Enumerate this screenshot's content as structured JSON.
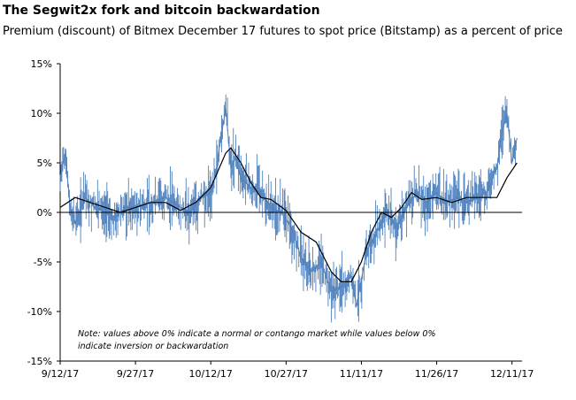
{
  "title": "The Segwit2x fork and bitcoin backwardation",
  "subtitle": "Premium (discount) of Bitmex December 17 futures to spot price (Bitstamp) as a percent of price",
  "chart_data": {
    "type": "line",
    "title": "The Segwit2x fork and bitcoin backwardation",
    "subtitle": "Premium (discount) of Bitmex December 17 futures to spot price (Bitstamp) as a percent of price",
    "xlabel": "",
    "ylabel": "",
    "x_ticks": [
      "9/12/17",
      "9/27/17",
      "10/12/17",
      "10/27/17",
      "11/11/17",
      "11/26/17",
      "12/11/17"
    ],
    "y_ticks": [
      "15%",
      "10%",
      "5%",
      "0%",
      "-5%",
      "-10%",
      "-15%"
    ],
    "xlim": [
      "2017-09-12",
      "2017-12-13"
    ],
    "ylim": [
      -15,
      15
    ],
    "grid": false,
    "zero_line": true,
    "note_lines": [
      "Note: values above 0% indicate a normal or contango market while values below 0%",
      "indicate inversion or backwardation"
    ],
    "series": [
      {
        "kind": "raw",
        "color": "#4f81bd",
        "x": [
          "2017-09-12",
          "2017-09-13",
          "2017-09-14",
          "2017-09-15",
          "2017-09-17",
          "2017-09-19",
          "2017-09-21",
          "2017-09-23",
          "2017-09-25",
          "2017-09-27",
          "2017-09-30",
          "2017-10-03",
          "2017-10-06",
          "2017-10-08",
          "2017-10-10",
          "2017-10-12",
          "2017-10-13",
          "2017-10-14",
          "2017-10-15",
          "2017-10-16",
          "2017-10-17",
          "2017-10-18",
          "2017-10-20",
          "2017-10-22",
          "2017-10-24",
          "2017-10-26",
          "2017-10-28",
          "2017-10-30",
          "2017-11-01",
          "2017-11-03",
          "2017-11-05",
          "2017-11-07",
          "2017-11-09",
          "2017-11-10",
          "2017-11-12",
          "2017-11-14",
          "2017-11-16",
          "2017-11-18",
          "2017-11-20",
          "2017-11-22",
          "2017-11-24",
          "2017-11-26",
          "2017-11-28",
          "2017-11-30",
          "2017-12-02",
          "2017-12-04",
          "2017-12-06",
          "2017-12-08",
          "2017-12-09",
          "2017-12-10",
          "2017-12-11",
          "2017-12-12"
        ],
        "values": [
          3.5,
          6.0,
          0.5,
          -1.0,
          1.5,
          0.5,
          0.0,
          -0.5,
          0.5,
          0.5,
          1.0,
          1.5,
          0.5,
          0.0,
          1.5,
          2.0,
          4.0,
          7.5,
          10.5,
          4.5,
          5.5,
          3.5,
          2.5,
          2.0,
          0.5,
          0.0,
          -1.5,
          -4.5,
          -6.0,
          -5.0,
          -8.0,
          -7.5,
          -6.5,
          -9.5,
          -4.0,
          -2.0,
          0.0,
          -1.5,
          0.5,
          2.0,
          1.0,
          2.0,
          1.0,
          1.5,
          1.0,
          1.5,
          2.0,
          4.5,
          8.0,
          10.0,
          5.0,
          7.5
        ]
      },
      {
        "kind": "moving-average",
        "color": "#000000",
        "x": [
          "2017-09-12",
          "2017-09-15",
          "2017-09-18",
          "2017-09-21",
          "2017-09-24",
          "2017-09-27",
          "2017-09-30",
          "2017-10-03",
          "2017-10-06",
          "2017-10-09",
          "2017-10-12",
          "2017-10-15",
          "2017-10-16",
          "2017-10-18",
          "2017-10-20",
          "2017-10-22",
          "2017-10-24",
          "2017-10-27",
          "2017-10-30",
          "2017-11-02",
          "2017-11-05",
          "2017-11-07",
          "2017-11-09",
          "2017-11-11",
          "2017-11-13",
          "2017-11-15",
          "2017-11-17",
          "2017-11-19",
          "2017-11-21",
          "2017-11-23",
          "2017-11-26",
          "2017-11-29",
          "2017-12-02",
          "2017-12-05",
          "2017-12-08",
          "2017-12-10",
          "2017-12-12"
        ],
        "values": [
          0.5,
          1.5,
          1.0,
          0.5,
          0.0,
          0.5,
          1.0,
          1.0,
          0.2,
          1.0,
          2.5,
          6.0,
          6.5,
          5.0,
          3.0,
          1.5,
          1.3,
          0.2,
          -2.0,
          -3.0,
          -6.0,
          -7.0,
          -7.0,
          -5.0,
          -2.0,
          0.0,
          -0.5,
          0.5,
          2.0,
          1.3,
          1.5,
          1.0,
          1.5,
          1.5,
          1.5,
          3.5,
          5.0
        ]
      }
    ]
  }
}
